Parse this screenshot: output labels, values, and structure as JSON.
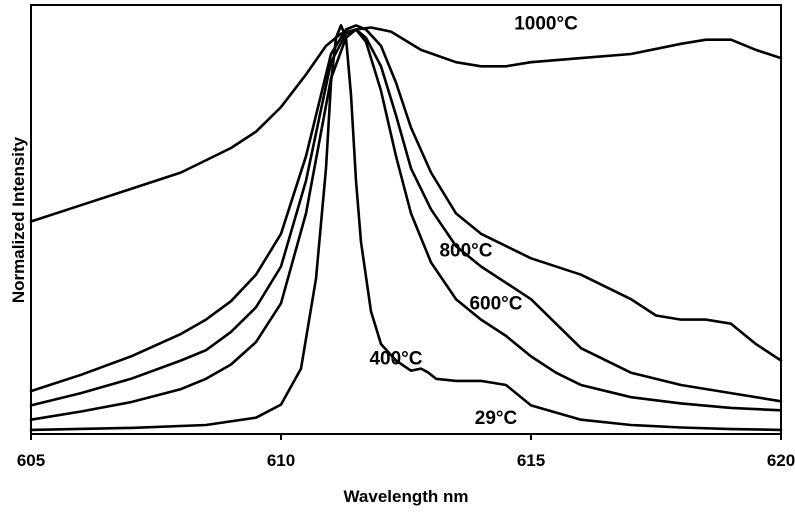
{
  "chart_data": {
    "type": "line",
    "title": "",
    "xlabel": "Wavelength nm",
    "ylabel": "Normalized Intensity",
    "xlim": [
      605,
      620
    ],
    "ylim": [
      0,
      1.05
    ],
    "xticks": [
      605,
      610,
      615,
      620
    ],
    "xtick_labels": [
      "605",
      "610",
      "615",
      "620"
    ],
    "yticks_shown": false,
    "grid": false,
    "legend": "none",
    "series": [
      {
        "name": "29°C",
        "x": [
          605,
          607,
          608.5,
          609.5,
          610,
          610.4,
          610.7,
          610.9,
          611.0,
          611.1,
          611.2,
          611.3,
          611.4,
          611.5,
          611.6,
          611.8,
          612.0,
          612.3,
          612.6,
          612.8,
          612.95,
          613.1,
          613.5,
          614,
          614.5,
          615,
          616,
          617,
          618,
          619,
          620
        ],
        "y": [
          0.01,
          0.015,
          0.022,
          0.04,
          0.072,
          0.16,
          0.38,
          0.65,
          0.86,
          0.97,
          1.0,
          0.97,
          0.83,
          0.62,
          0.47,
          0.3,
          0.22,
          0.18,
          0.155,
          0.16,
          0.15,
          0.135,
          0.13,
          0.13,
          0.12,
          0.07,
          0.035,
          0.022,
          0.016,
          0.012,
          0.01
        ]
      },
      {
        "name": "400°C",
        "x": [
          605,
          606,
          607,
          608,
          608.5,
          609,
          609.5,
          610,
          610.5,
          611.0,
          611.3,
          611.5,
          611.7,
          612.0,
          612.3,
          612.6,
          613,
          613.5,
          614,
          614.5,
          615,
          615.5,
          616,
          617,
          618,
          619,
          620
        ],
        "y": [
          0.035,
          0.055,
          0.078,
          0.11,
          0.135,
          0.17,
          0.225,
          0.32,
          0.54,
          0.87,
          0.97,
          0.99,
          0.96,
          0.84,
          0.68,
          0.54,
          0.42,
          0.33,
          0.28,
          0.24,
          0.19,
          0.15,
          0.12,
          0.09,
          0.075,
          0.064,
          0.058
        ]
      },
      {
        "name": "600°C",
        "x": [
          605,
          606,
          607,
          608,
          608.5,
          609,
          609.5,
          610,
          610.5,
          611.0,
          611.3,
          611.5,
          611.7,
          612.0,
          612.3,
          612.6,
          613,
          613.5,
          614,
          614.5,
          615,
          615.5,
          616,
          617,
          618,
          619,
          620
        ],
        "y": [
          0.07,
          0.1,
          0.135,
          0.18,
          0.205,
          0.25,
          0.31,
          0.41,
          0.62,
          0.91,
          0.98,
          0.99,
          0.97,
          0.9,
          0.78,
          0.65,
          0.55,
          0.46,
          0.41,
          0.37,
          0.33,
          0.27,
          0.21,
          0.15,
          0.12,
          0.1,
          0.08
        ]
      },
      {
        "name": "800°C",
        "x": [
          605,
          606,
          607,
          608,
          608.5,
          609,
          609.5,
          610,
          610.5,
          611.0,
          611.3,
          611.5,
          611.7,
          612.0,
          612.3,
          612.6,
          613,
          613.5,
          614,
          614.5,
          615,
          616,
          617,
          617.5,
          618,
          618.5,
          619,
          619.5,
          620
        ],
        "y": [
          0.105,
          0.145,
          0.19,
          0.245,
          0.28,
          0.325,
          0.39,
          0.49,
          0.68,
          0.93,
          0.99,
          1.0,
          0.99,
          0.95,
          0.86,
          0.75,
          0.64,
          0.54,
          0.49,
          0.46,
          0.43,
          0.39,
          0.33,
          0.29,
          0.28,
          0.28,
          0.27,
          0.22,
          0.18
        ]
      },
      {
        "name": "1000°C",
        "x": [
          605,
          606,
          607,
          608,
          609,
          609.5,
          610,
          610.5,
          610.9,
          611.2,
          611.5,
          611.8,
          612.2,
          612.8,
          613.5,
          614,
          614.5,
          615,
          616,
          617,
          618,
          618.5,
          619,
          619.5,
          620
        ],
        "y": [
          0.52,
          0.56,
          0.6,
          0.64,
          0.7,
          0.74,
          0.8,
          0.88,
          0.95,
          0.98,
          0.99,
          0.995,
          0.985,
          0.94,
          0.91,
          0.9,
          0.9,
          0.91,
          0.92,
          0.93,
          0.955,
          0.965,
          0.965,
          0.94,
          0.92
        ]
      }
    ]
  }
}
